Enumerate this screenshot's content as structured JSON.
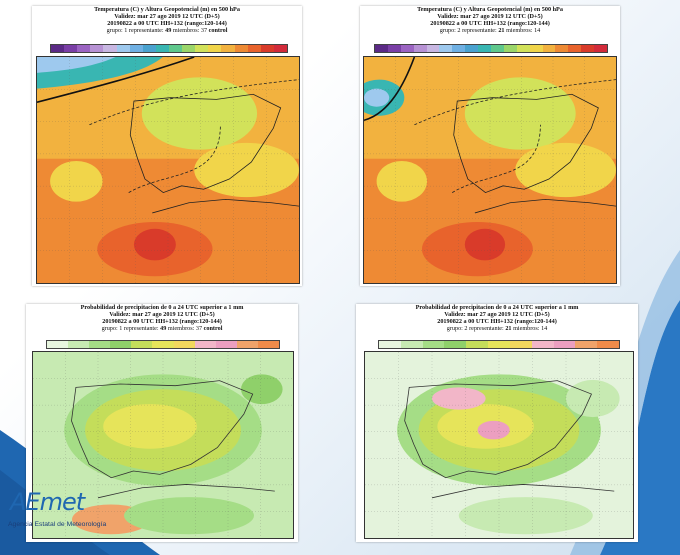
{
  "panels": [
    {
      "id": "temp-control",
      "line1": "Temperatura (C) y Altura Geopotencial (m) en 500 hPa",
      "line2": "Validez: mar 27 ago 2019 12 UTC (D+5)",
      "line3": "20190822 a 00 UTC HH+132 (rango:120-144)",
      "line4_prefix": "grupo: 1 representante:",
      "line4_rep": "49",
      "line4_mid": "miembros: 37",
      "line4_suffix": "control",
      "colorbar": [
        "#5b2a86",
        "#7a3fa6",
        "#9b64c2",
        "#b792d4",
        "#c8b7e2",
        "#9ec9ee",
        "#6fb0e3",
        "#4aa2cf",
        "#39b6b2",
        "#5fc88c",
        "#9bd66a",
        "#d2e25a",
        "#f1d54a",
        "#f2b23f",
        "#ee8a34",
        "#e8632c",
        "#d93b2a",
        "#d22b3a"
      ],
      "variant": "temp1"
    },
    {
      "id": "temp-group2",
      "line1": "Temperatura (C) y Altura Geopotencial (m) en 500 hPa",
      "line2": "Validez: mar 27 ago 2019 12 UTC (D+5)",
      "line3": "20190822 a 00 UTC HH+132 (rango:120-144)",
      "line4_prefix": "grupo: 2 representante:",
      "line4_rep": "21",
      "line4_mid": "miembros: 14",
      "line4_suffix": "",
      "colorbar": [
        "#5b2a86",
        "#7a3fa6",
        "#9b64c2",
        "#b792d4",
        "#c8b7e2",
        "#9ec9ee",
        "#6fb0e3",
        "#4aa2cf",
        "#39b6b2",
        "#5fc88c",
        "#9bd66a",
        "#d2e25a",
        "#f1d54a",
        "#f2b23f",
        "#ee8a34",
        "#e8632c",
        "#d93b2a",
        "#d22b3a"
      ],
      "variant": "temp2"
    },
    {
      "id": "precip-control",
      "line1": "Probabilidad de precipitacion de 0 a 24 UTC superior a 1 mm",
      "line2": "Validez: mar 27 ago 2019 12 UTC (D+5)",
      "line3": "20190822 a 00 UTC HH+132 (rango:120-144)",
      "line4_prefix": "grupo: 1 representante:",
      "line4_rep": "49",
      "line4_mid": "miembros: 37",
      "line4_suffix": "control",
      "colorbar": [
        "#e8f6e0",
        "#c7eab2",
        "#a5dd86",
        "#8fd06a",
        "#c4dd5a",
        "#e6e45a",
        "#f3d85e",
        "#f2b6c8",
        "#ec9fc0",
        "#f0a36a",
        "#ef8b4a"
      ],
      "variant": "precip1"
    },
    {
      "id": "precip-group2",
      "line1": "Probabilidad de precipitacion de 0 a 24 UTC superior a 1 mm",
      "line2": "Validez: mar 27 ago 2019 12 UTC (D+5)",
      "line3": "20190822 a 00 UTC HH+132 (rango:120-144)",
      "line4_prefix": "grupo: 2 representante:",
      "line4_rep": "21",
      "line4_mid": "miembros: 14",
      "line4_suffix": "",
      "colorbar": [
        "#e8f6e0",
        "#c7eab2",
        "#a5dd86",
        "#8fd06a",
        "#c4dd5a",
        "#e6e45a",
        "#f3d85e",
        "#f2b6c8",
        "#ec9fc0",
        "#f0a36a",
        "#ef8b4a"
      ],
      "variant": "precip2"
    }
  ],
  "logo": {
    "mark": "AEmet",
    "subtitle": "Agencia Estatal de Meteorología"
  }
}
